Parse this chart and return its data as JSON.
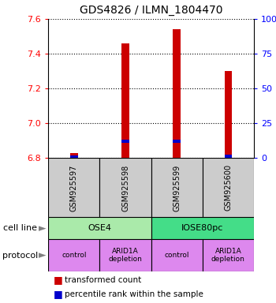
{
  "title": "GDS4826 / ILMN_1804470",
  "samples": [
    "GSM925597",
    "GSM925598",
    "GSM925599",
    "GSM925600"
  ],
  "bar_values": [
    6.83,
    7.46,
    7.54,
    7.3
  ],
  "bar_base": 6.8,
  "blue_values": [
    6.805,
    6.895,
    6.895,
    6.81
  ],
  "ylim": [
    6.8,
    7.6
  ],
  "yticks_left": [
    6.8,
    7.0,
    7.2,
    7.4,
    7.6
  ],
  "yticks_right": [
    0,
    25,
    50,
    75,
    100
  ],
  "yticks_right_labels": [
    "0",
    "25",
    "50",
    "75",
    "100%"
  ],
  "cell_lines": [
    [
      "OSE4",
      0,
      2
    ],
    [
      "IOSE80pc",
      2,
      4
    ]
  ],
  "cell_line_colors": [
    "#aaeaaa",
    "#44dd88"
  ],
  "protocols": [
    "control",
    "ARID1A\ndepletion",
    "control",
    "ARID1A\ndepletion"
  ],
  "protocol_color": "#dd88ee",
  "sample_box_color": "#cccccc",
  "bar_color": "#cc0000",
  "blue_color": "#0000cc",
  "legend_red": "transformed count",
  "legend_blue": "percentile rank within the sample",
  "cell_line_label": "cell line",
  "protocol_label": "protocol"
}
